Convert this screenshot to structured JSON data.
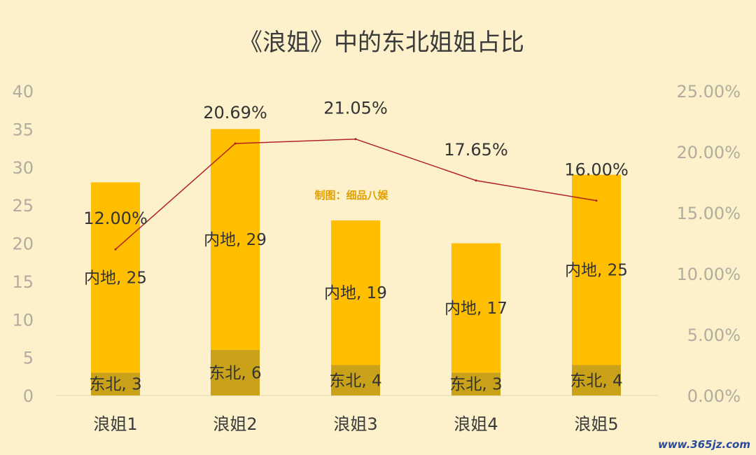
{
  "chart_data": {
    "type": "bar",
    "title": "《浪姐》中的东北姐姐占比",
    "categories": [
      "浪姐1",
      "浪姐2",
      "浪姐3",
      "浪姐4",
      "浪姐5"
    ],
    "series": [
      {
        "name": "东北",
        "values": [
          3,
          6,
          4,
          3,
          4
        ],
        "color": "#c9a21a"
      },
      {
        "name": "内地",
        "values": [
          25,
          29,
          19,
          17,
          25
        ],
        "color": "#ffbf00"
      }
    ],
    "line": {
      "values": [
        12.0,
        20.69,
        21.05,
        17.65,
        16.0
      ],
      "labels": [
        "12.00%",
        "20.69%",
        "21.05%",
        "17.65%",
        "16.00%"
      ],
      "color": "#b22222"
    },
    "ylim": [
      0,
      40
    ],
    "yticks": [
      "0",
      "5",
      "10",
      "15",
      "20",
      "25",
      "30",
      "35",
      "40"
    ],
    "y2lim": [
      0,
      25
    ],
    "y2ticks": [
      "0.00%",
      "5.00%",
      "10.00%",
      "15.00%",
      "20.00%",
      "25.00%"
    ],
    "stacked": true,
    "grid": false,
    "legend": "none"
  },
  "credit": "制图：细品八娱",
  "watermark": "www.365jz.com"
}
